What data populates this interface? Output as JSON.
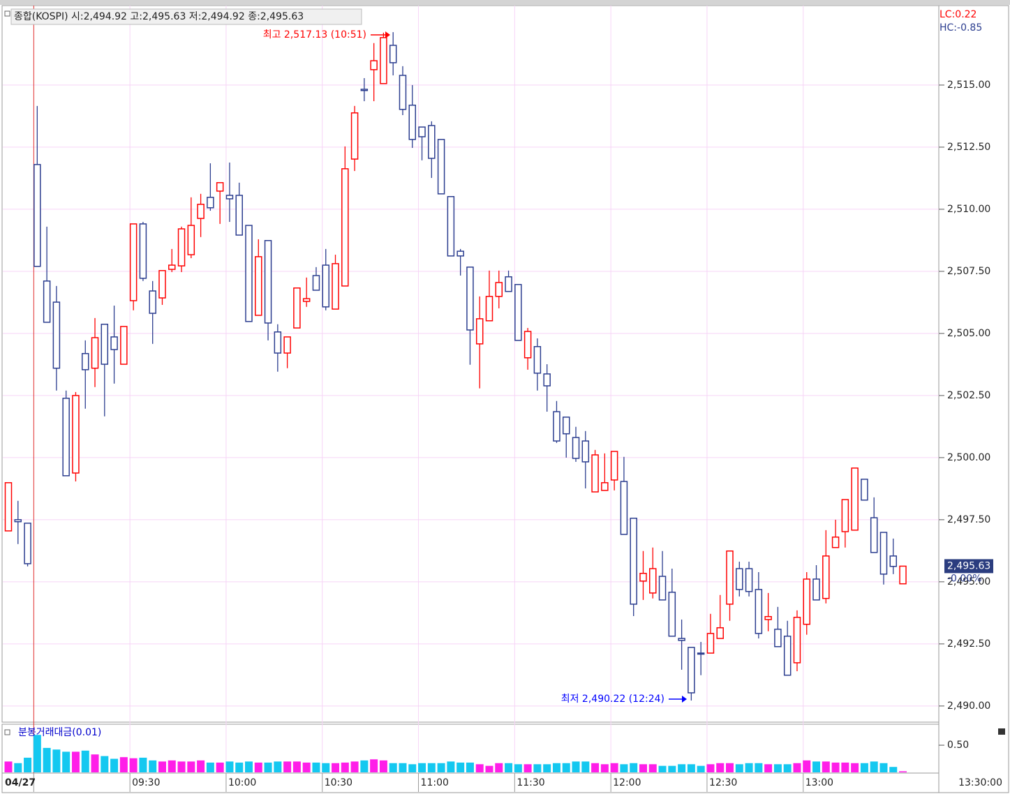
{
  "chart_data": [
    {
      "type": "candlestick",
      "title": "종합(KOSPI) 시:2,494.92 고:2,495.63 저:2,494.92 종:2,495.63",
      "lc_label": "LC:0.22",
      "hc_label": "HC:-0.85",
      "annotations": [
        {
          "text": "최고 2,517.13 (10:51)",
          "color": "#ff0000"
        },
        {
          "text": "최저 2,490.22 (12:24)",
          "color": "#0000ff"
        }
      ],
      "last_label": "2,495.63",
      "change_label": "-0.00%",
      "time_label": "13:30:00",
      "up_color": "#ff0000",
      "down_color": "#2b3d8f",
      "categories": [
        null,
        null,
        null,
        "04/27",
        null,
        null,
        null,
        null,
        null,
        null,
        null,
        null,
        null,
        "09:30",
        null,
        null,
        null,
        null,
        null,
        null,
        null,
        null,
        null,
        "10:00",
        null,
        null,
        null,
        null,
        null,
        null,
        null,
        null,
        null,
        "10:30",
        null,
        null,
        null,
        null,
        null,
        null,
        null,
        null,
        null,
        "11:00",
        null,
        null,
        null,
        null,
        null,
        null,
        null,
        null,
        null,
        "11:30",
        null,
        null,
        null,
        null,
        null,
        null,
        null,
        null,
        null,
        "12:00",
        null,
        null,
        null,
        null,
        null,
        null,
        null,
        null,
        null,
        "12:30",
        null,
        null,
        null,
        null,
        null,
        null,
        null,
        null,
        null,
        "13:00",
        null,
        null,
        null,
        null,
        null,
        null,
        null,
        null,
        null,
        null
      ],
      "open": [
        2497.05,
        2497.5,
        2497.36,
        2511.8,
        2507.11,
        2506.26,
        2502.39,
        2499.38,
        2504.19,
        2503.6,
        2505.37,
        2504.86,
        2503.76,
        2506.32,
        2509.41,
        2506.71,
        2506.43,
        2507.58,
        2507.72,
        2508.17,
        2509.63,
        2510.48,
        2510.73,
        2510.56,
        2510.56,
        2509.35,
        2505.73,
        2508.74,
        2505.06,
        2504.21,
        2505.22,
        2506.29,
        2507.33,
        2507.75,
        2505.98,
        2506.91,
        2512.02,
        2514.83,
        2515.62,
        2515.06,
        2516.6,
        2515.39,
        2514.19,
        2513.31,
        2513.37,
        2512.81,
        2510.51,
        2508.31,
        2507.67,
        2504.58,
        2505.51,
        2506.49,
        2507.28,
        2506.97,
        2504.02,
        2504.47,
        2503.37,
        2501.85,
        2501.63,
        2500.81,
        2500.67,
        2498.62,
        2498.68,
        2499.1,
        2499.04,
        2497.56,
        2495.03,
        2494.55,
        2495.22,
        2494.58,
        2492.72,
        2492.36,
        2492.13,
        2492.13,
        2492.72,
        2494.1,
        2495.53,
        2495.53,
        2494.69,
        2493.48,
        2493.09,
        2492.81,
        2491.74,
        2493.29,
        2495.11,
        2494.33,
        2496.38,
        2497.02,
        2497.08,
        2499.13,
        2497.58,
        2496.99,
        2496.04,
        2494.92
      ],
      "high": [
        2498.99,
        2498.26,
        2497.36,
        2514.16,
        2509.3,
        2506.91,
        2502.7,
        2502.64,
        2504.72,
        2505.62,
        2505.37,
        2506.12,
        2505.28,
        2509.41,
        2509.49,
        2507.11,
        2507.53,
        2508.4,
        2509.3,
        2510.48,
        2510.62,
        2511.85,
        2511.07,
        2511.88,
        2511.07,
        2509.35,
        2508.79,
        2508.74,
        2505.37,
        2504.86,
        2506.83,
        2507.25,
        2507.67,
        2508.4,
        2508.17,
        2512.53,
        2514.16,
        2515.28,
        2516.69,
        2517.11,
        2517.13,
        2515.76,
        2515.0,
        2513.31,
        2513.54,
        2512.81,
        2510.51,
        2508.4,
        2507.67,
        2506.49,
        2507.53,
        2507.53,
        2507.53,
        2506.97,
        2505.22,
        2504.8,
        2503.76,
        2502.28,
        2501.63,
        2501.24,
        2501.07,
        2500.31,
        2500.17,
        2500.25,
        2500.03,
        2497.56,
        2496.24,
        2496.38,
        2496.24,
        2495.53,
        2493.48,
        2492.36,
        2492.58,
        2493.71,
        2494.47,
        2496.24,
        2495.81,
        2495.81,
        2495.39,
        2494.55,
        2493.99,
        2493.43,
        2493.85,
        2495.39,
        2495.67,
        2497.08,
        2497.5,
        2498.31,
        2499.58,
        2499.13,
        2498.4,
        2496.99,
        2496.74,
        2495.63
      ],
      "low": [
        2497.05,
        2496.52,
        2495.62,
        2507.7,
        2505.45,
        2502.7,
        2499.27,
        2499.04,
        2501.97,
        2502.84,
        2501.66,
        2502.98,
        2503.76,
        2505.93,
        2507.11,
        2504.58,
        2506.15,
        2507.47,
        2507.47,
        2508.03,
        2508.88,
        2509.94,
        2509.41,
        2509.49,
        2508.96,
        2505.48,
        2505.73,
        2504.72,
        2503.46,
        2503.6,
        2505.22,
        2506.07,
        2506.74,
        2505.93,
        2505.98,
        2506.91,
        2511.54,
        2514.35,
        2514.35,
        2515.06,
        2515.39,
        2513.79,
        2512.47,
        2511.97,
        2511.26,
        2510.62,
        2508.12,
        2507.33,
        2503.74,
        2502.79,
        2505.51,
        2506.01,
        2506.69,
        2504.72,
        2503.54,
        2502.7,
        2501.85,
        2500.59,
        2500.0,
        2499.83,
        2498.76,
        2498.62,
        2498.68,
        2498.68,
        2496.91,
        2493.62,
        2494.27,
        2494.33,
        2494.27,
        2492.81,
        2491.46,
        2490.22,
        2491.24,
        2492.13,
        2492.72,
        2493.43,
        2494.41,
        2494.41,
        2492.72,
        2493.01,
        2492.39,
        2491.24,
        2491.4,
        2492.87,
        2494.27,
        2494.13,
        2496.38,
        2496.38,
        2497.08,
        2498.29,
        2496.18,
        2494.89,
        2495.31,
        2494.92
      ],
      "close": [
        2498.99,
        2497.42,
        2495.73,
        2507.7,
        2505.45,
        2503.6,
        2499.27,
        2502.5,
        2503.54,
        2504.83,
        2503.76,
        2504.35,
        2505.28,
        2509.41,
        2507.22,
        2505.81,
        2507.53,
        2507.75,
        2509.21,
        2509.35,
        2510.2,
        2510.06,
        2511.07,
        2510.42,
        2508.96,
        2505.48,
        2508.09,
        2505.42,
        2504.21,
        2504.86,
        2506.83,
        2506.4,
        2506.74,
        2506.07,
        2507.81,
        2511.63,
        2513.88,
        2514.78,
        2515.98,
        2516.91,
        2515.9,
        2514.02,
        2512.81,
        2512.92,
        2512.05,
        2510.62,
        2508.12,
        2508.12,
        2505.14,
        2505.59,
        2506.49,
        2507.05,
        2506.69,
        2504.72,
        2505.08,
        2503.4,
        2502.89,
        2500.67,
        2500.96,
        2499.97,
        2499.83,
        2500.11,
        2498.99,
        2500.25,
        2496.91,
        2494.1,
        2495.34,
        2495.53,
        2494.27,
        2492.81,
        2492.64,
        2490.53,
        2492.1,
        2492.92,
        2493.15,
        2496.24,
        2494.69,
        2494.61,
        2492.92,
        2493.6,
        2492.39,
        2491.24,
        2493.57,
        2495.11,
        2494.27,
        2496.04,
        2496.8,
        2498.31,
        2499.58,
        2498.29,
        2496.18,
        2495.31,
        2495.62,
        2495.63
      ],
      "ylim": [
        2489.35,
        2518.2
      ],
      "yticks": [
        {
          "value": 2490,
          "label": "2,490.00"
        },
        {
          "value": 2492.5,
          "label": "2,492.50"
        },
        {
          "value": 2495,
          "label": "2,495.00"
        },
        {
          "value": 2497.5,
          "label": "2,497.50"
        },
        {
          "value": 2500,
          "label": "2,500.00"
        },
        {
          "value": 2502.5,
          "label": "2,502.50"
        },
        {
          "value": 2505,
          "label": "2,505.00"
        },
        {
          "value": 2507.5,
          "label": "2,507.50"
        },
        {
          "value": 2510,
          "label": "2,510.00"
        },
        {
          "value": 2512.5,
          "label": "2,512.50"
        },
        {
          "value": 2515,
          "label": "2,515.00"
        }
      ],
      "grid": true
    },
    {
      "type": "bar",
      "title": "분봉거래대금(0.01)",
      "up_color": "#ff1ee8",
      "down_color": "#14c8f0",
      "values": [
        0.2,
        0.17,
        0.27,
        0.69,
        0.45,
        0.42,
        0.38,
        0.38,
        0.4,
        0.33,
        0.3,
        0.25,
        0.28,
        0.26,
        0.27,
        0.22,
        0.2,
        0.22,
        0.2,
        0.2,
        0.22,
        0.18,
        0.18,
        0.2,
        0.18,
        0.2,
        0.18,
        0.18,
        0.2,
        0.2,
        0.2,
        0.18,
        0.18,
        0.17,
        0.17,
        0.18,
        0.2,
        0.22,
        0.24,
        0.22,
        0.17,
        0.17,
        0.15,
        0.17,
        0.17,
        0.17,
        0.2,
        0.18,
        0.18,
        0.15,
        0.12,
        0.17,
        0.17,
        0.15,
        0.15,
        0.15,
        0.15,
        0.17,
        0.17,
        0.2,
        0.2,
        0.17,
        0.15,
        0.17,
        0.15,
        0.17,
        0.15,
        0.15,
        0.12,
        0.12,
        0.15,
        0.15,
        0.12,
        0.15,
        0.17,
        0.17,
        0.15,
        0.17,
        0.17,
        0.15,
        0.15,
        0.15,
        0.17,
        0.22,
        0.2,
        0.2,
        0.18,
        0.18,
        0.17,
        0.17,
        0.2,
        0.17,
        0.1,
        0.02
      ],
      "ylim": [
        0,
        0.86
      ],
      "yticks": [
        {
          "value": 0.5,
          "label": "0.50"
        }
      ]
    }
  ]
}
